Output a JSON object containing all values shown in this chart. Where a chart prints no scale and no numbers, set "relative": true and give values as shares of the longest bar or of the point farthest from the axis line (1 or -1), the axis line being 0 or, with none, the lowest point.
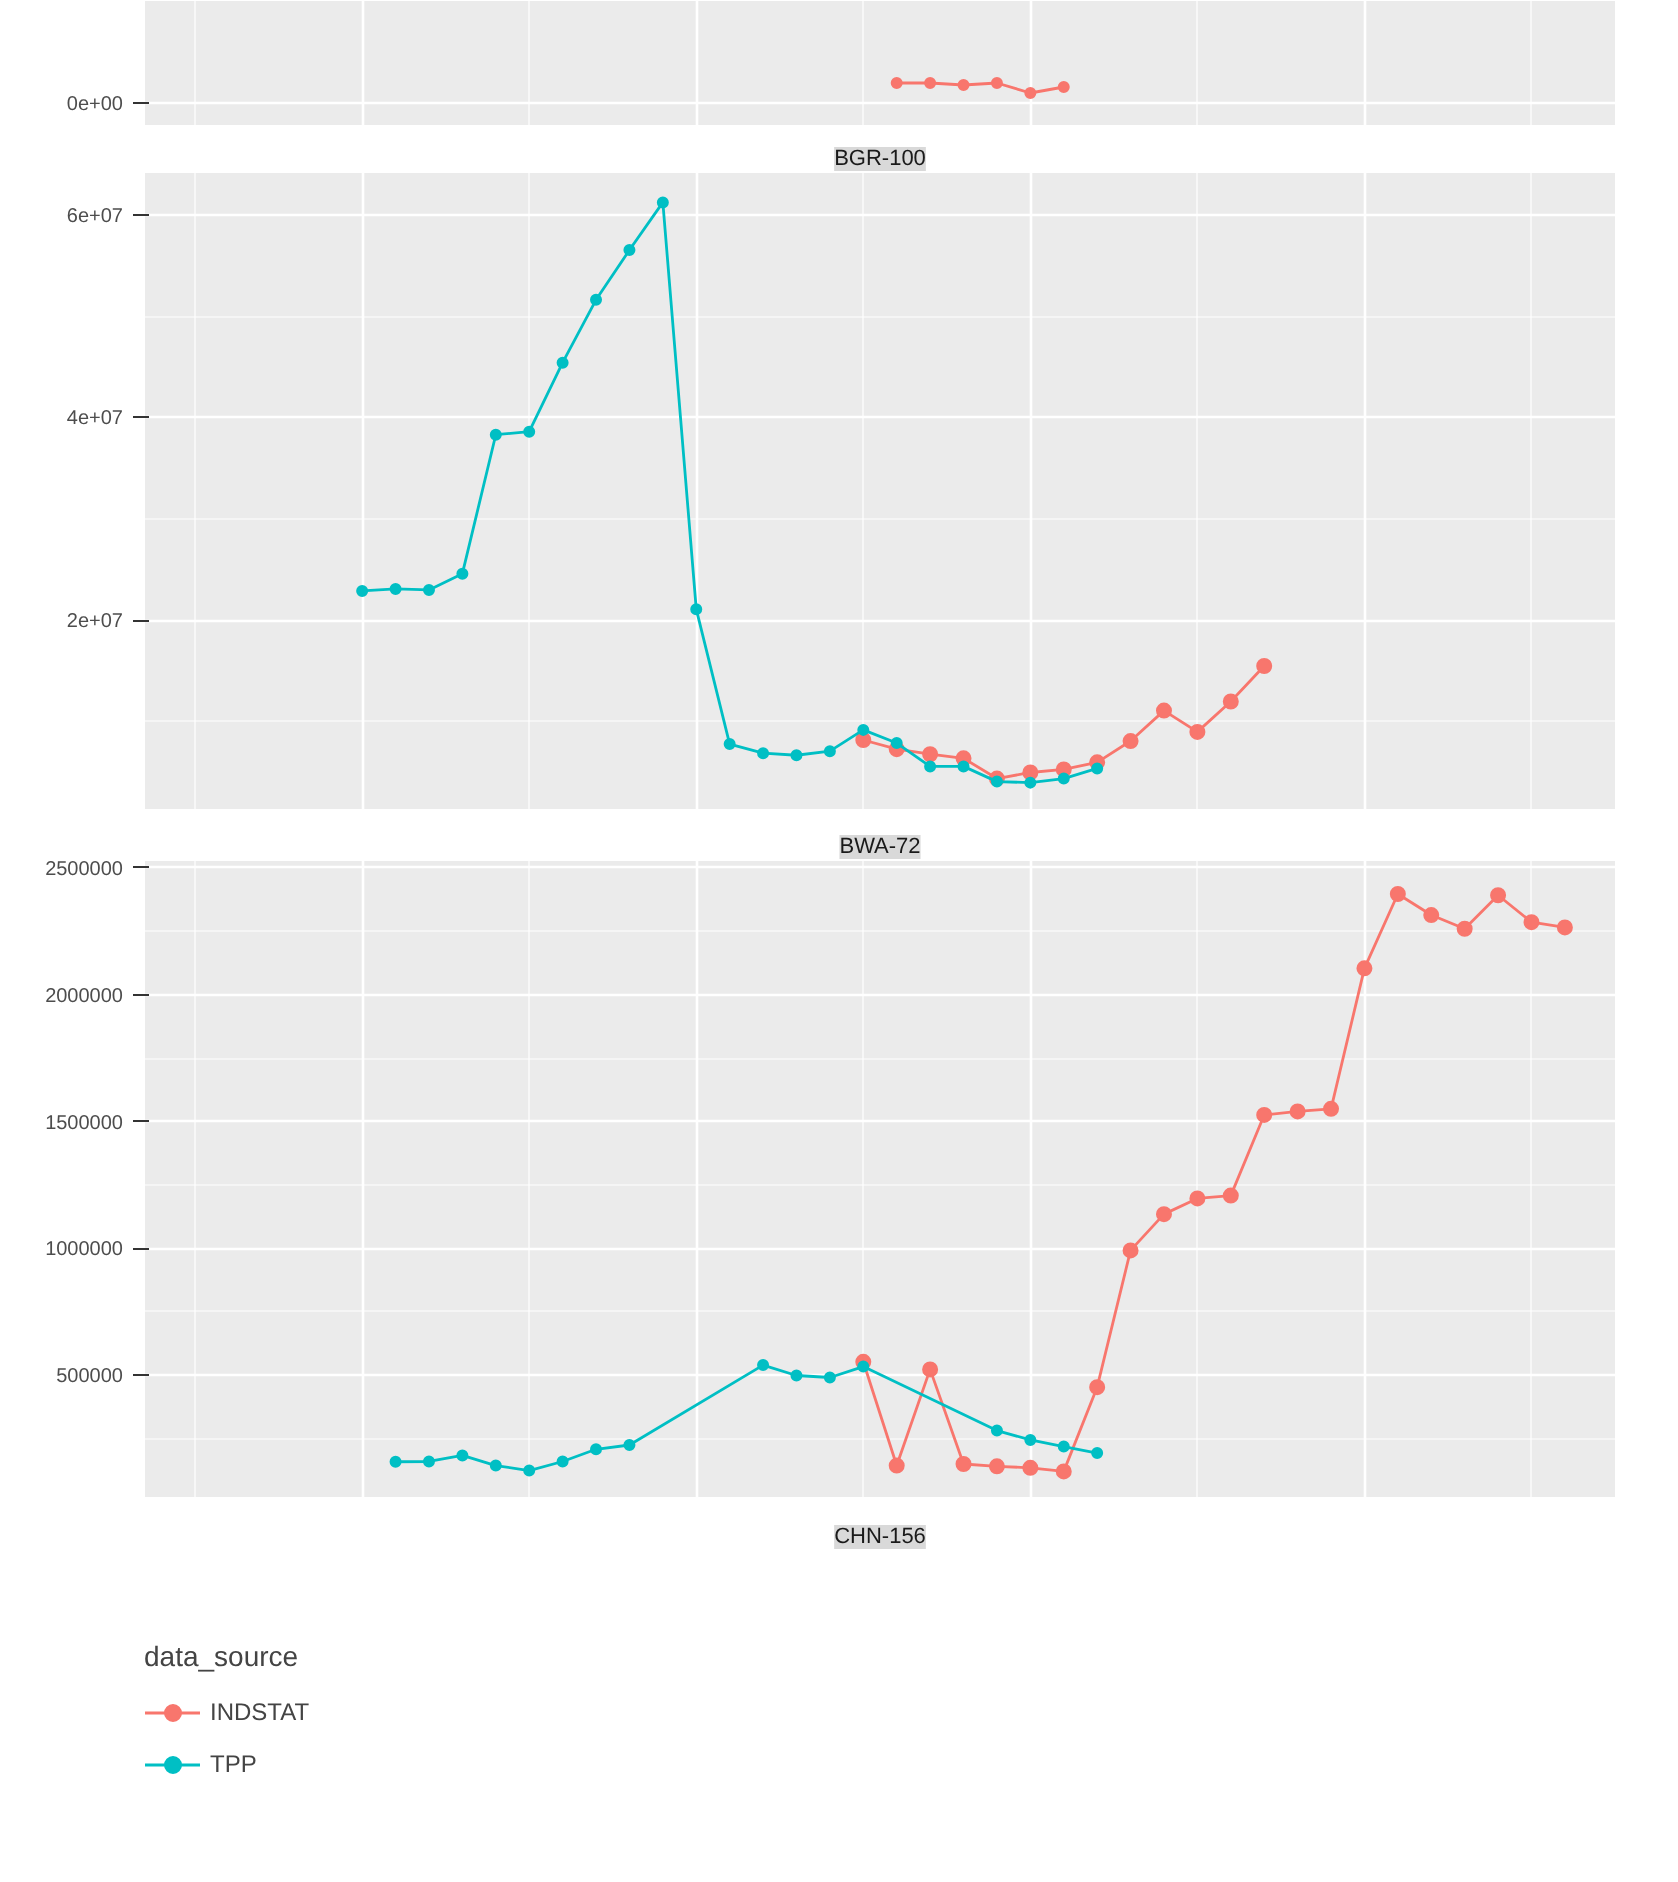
{
  "chart_data": [
    {
      "type": "line",
      "relative": true,
      "marker": "circle",
      "grid": true,
      "annotations": [
        "0e+00"
      ],
      "categories": [
        null,
        null,
        null,
        null,
        null,
        null,
        null,
        null,
        null,
        null,
        null,
        null,
        null,
        null,
        null,
        null,
        null,
        null,
        null,
        null,
        null,
        null,
        null,
        null,
        null,
        null,
        null,
        null,
        null,
        null,
        null,
        null,
        null,
        null,
        null,
        null,
        null,
        null,
        null,
        null,
        null,
        null,
        null,
        null
      ],
      "series": [
        {
          "name": "INDSTAT",
          "color": "#f8766d",
          "values": [
            null,
            null,
            null,
            null,
            null,
            null,
            null,
            null,
            null,
            null,
            null,
            null,
            null,
            null,
            null,
            null,
            null,
            null,
            null,
            null,
            null,
            null,
            1,
            1,
            0.9,
            1,
            0.5,
            0.8,
            null,
            null,
            null,
            null,
            null,
            null,
            null,
            null,
            null,
            null,
            null,
            null,
            null,
            null,
            null,
            null
          ]
        }
      ]
    },
    {
      "type": "line",
      "title": "BGR-100",
      "marker": "circle",
      "grid": true,
      "ylim": [
        1400000,
        64100000
      ],
      "categories": [
        null,
        null,
        null,
        null,
        null,
        null,
        null,
        null,
        null,
        null,
        null,
        null,
        null,
        null,
        null,
        null,
        null,
        null,
        null,
        null,
        null,
        null,
        null,
        null,
        null,
        null,
        null,
        null,
        null,
        null,
        null,
        null,
        null,
        null,
        null,
        null,
        null,
        null,
        null,
        null,
        null,
        null,
        null,
        null
      ],
      "yticks": [
        {
          "value": 10000000,
          "label": null
        },
        {
          "value": 20000000,
          "label": "2e+07"
        },
        {
          "value": 30000000,
          "label": null
        },
        {
          "value": 40000000,
          "label": "4e+07"
        },
        {
          "value": 50000000,
          "label": null
        },
        {
          "value": 60000000,
          "label": "6e+07"
        }
      ],
      "series": [
        {
          "name": "INDSTAT",
          "color": "#f8766d",
          "values": [
            null,
            null,
            null,
            null,
            null,
            null,
            null,
            null,
            null,
            null,
            null,
            null,
            null,
            null,
            null,
            null,
            null,
            null,
            null,
            null,
            null,
            8200000,
            7300000,
            6800000,
            6400000,
            4400000,
            5000000,
            5300000,
            6000000,
            8100000,
            11100000,
            9000000,
            12000000,
            15500000,
            null,
            null,
            null,
            null,
            null,
            null,
            null,
            null,
            null,
            null
          ]
        },
        {
          "name": "TPP",
          "color": "#00bfc4",
          "values": [
            null,
            null,
            null,
            null,
            null,
            null,
            22900000,
            23100000,
            23000000,
            24600000,
            38300000,
            38600000,
            45400000,
            51600000,
            56500000,
            61200000,
            21100000,
            7800000,
            6900000,
            6700000,
            7100000,
            9200000,
            7900000,
            5600000,
            5600000,
            4100000,
            4000000,
            4400000,
            5400000,
            null,
            null,
            null,
            null,
            null,
            null,
            null,
            null,
            null,
            null,
            null,
            null,
            null,
            null,
            null
          ]
        }
      ]
    },
    {
      "type": "line",
      "title": "BWA-72",
      "marker": "circle",
      "grid": true,
      "ylim": [
        20000,
        2527000
      ],
      "legend": "bottom",
      "legend_title": "data_source",
      "categories": [
        null,
        null,
        null,
        null,
        null,
        null,
        null,
        null,
        null,
        null,
        null,
        null,
        null,
        null,
        null,
        null,
        null,
        null,
        null,
        null,
        null,
        null,
        null,
        null,
        null,
        null,
        null,
        null,
        null,
        null,
        null,
        null,
        null,
        null,
        null,
        null,
        null,
        null,
        null,
        null,
        null,
        null,
        null,
        null
      ],
      "yticks": [
        {
          "value": 250000,
          "label": null
        },
        500000,
        {
          "value": 750000,
          "label": null
        },
        1000000,
        {
          "value": 1250000,
          "label": null
        },
        1500000,
        {
          "value": 1750000,
          "label": null
        },
        2000000,
        {
          "value": 2250000,
          "label": null
        },
        2500000
      ],
      "series": [
        {
          "name": "INDSTAT",
          "color": "#f8766d",
          "values": [
            null,
            null,
            null,
            null,
            null,
            null,
            null,
            null,
            null,
            null,
            null,
            null,
            null,
            null,
            null,
            null,
            null,
            null,
            null,
            null,
            null,
            553000,
            144000,
            523000,
            150000,
            141000,
            135000,
            121000,
            453000,
            992000,
            1135000,
            1197000,
            1208000,
            1526000,
            1540000,
            1550000,
            2104000,
            2397000,
            2314000,
            2260000,
            2392000,
            2286000,
            2265000,
            null
          ]
        },
        {
          "name": "TPP",
          "color": "#00bfc4",
          "values": [
            null,
            null,
            null,
            null,
            null,
            null,
            null,
            159000,
            160000,
            184000,
            144000,
            124000,
            160000,
            208000,
            225000,
            null,
            null,
            null,
            540000,
            499000,
            491000,
            534000,
            null,
            null,
            null,
            282000,
            245000,
            219000,
            193000,
            null,
            null,
            null,
            null,
            null,
            null,
            null,
            null,
            null,
            null,
            null,
            null,
            null,
            null,
            null
          ]
        }
      ]
    },
    {
      "type": "other",
      "title": "CHN-156"
    }
  ]
}
